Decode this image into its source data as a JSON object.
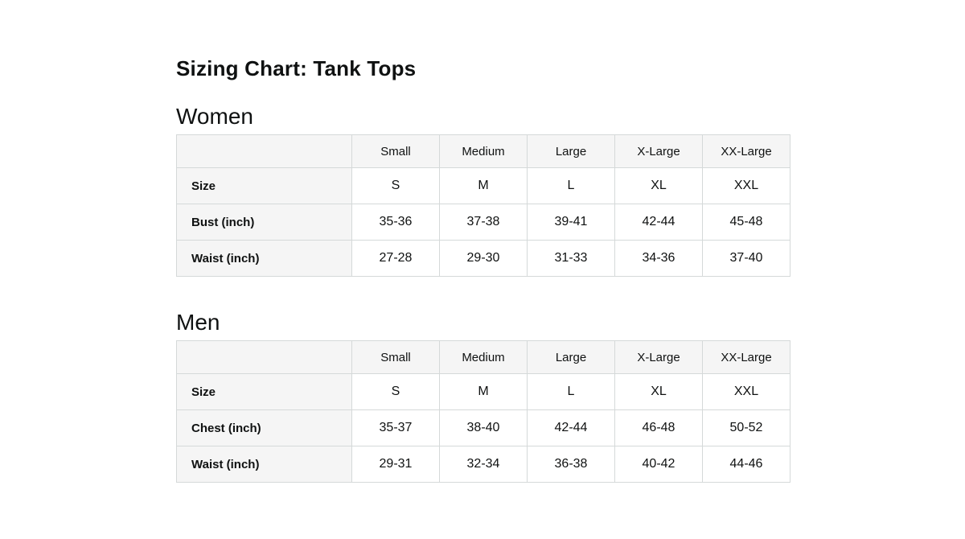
{
  "page": {
    "title": "Sizing Chart: Tank Tops"
  },
  "colors": {
    "text": "#0F1111",
    "border": "#D5D9D9",
    "header_bg": "#F5F5F5",
    "cell_bg": "#FFFFFF"
  },
  "sections": [
    {
      "heading": "Women",
      "table": {
        "columns": [
          "Small",
          "Medium",
          "Large",
          "X-Large",
          "XX-Large"
        ],
        "rows": [
          {
            "label": "Size",
            "values": [
              "S",
              "M",
              "L",
              "XL",
              "XXL"
            ]
          },
          {
            "label": "Bust (inch)",
            "values": [
              "35-36",
              "37-38",
              "39-41",
              "42-44",
              "45-48"
            ]
          },
          {
            "label": "Waist (inch)",
            "values": [
              "27-28",
              "29-30",
              "31-33",
              "34-36",
              "37-40"
            ]
          }
        ]
      }
    },
    {
      "heading": "Men",
      "table": {
        "columns": [
          "Small",
          "Medium",
          "Large",
          "X-Large",
          "XX-Large"
        ],
        "rows": [
          {
            "label": "Size",
            "values": [
              "S",
              "M",
              "L",
              "XL",
              "XXL"
            ]
          },
          {
            "label": "Chest (inch)",
            "values": [
              "35-37",
              "38-40",
              "42-44",
              "46-48",
              "50-52"
            ]
          },
          {
            "label": "Waist (inch)",
            "values": [
              "29-31",
              "32-34",
              "36-38",
              "40-42",
              "44-46"
            ]
          }
        ]
      }
    }
  ]
}
